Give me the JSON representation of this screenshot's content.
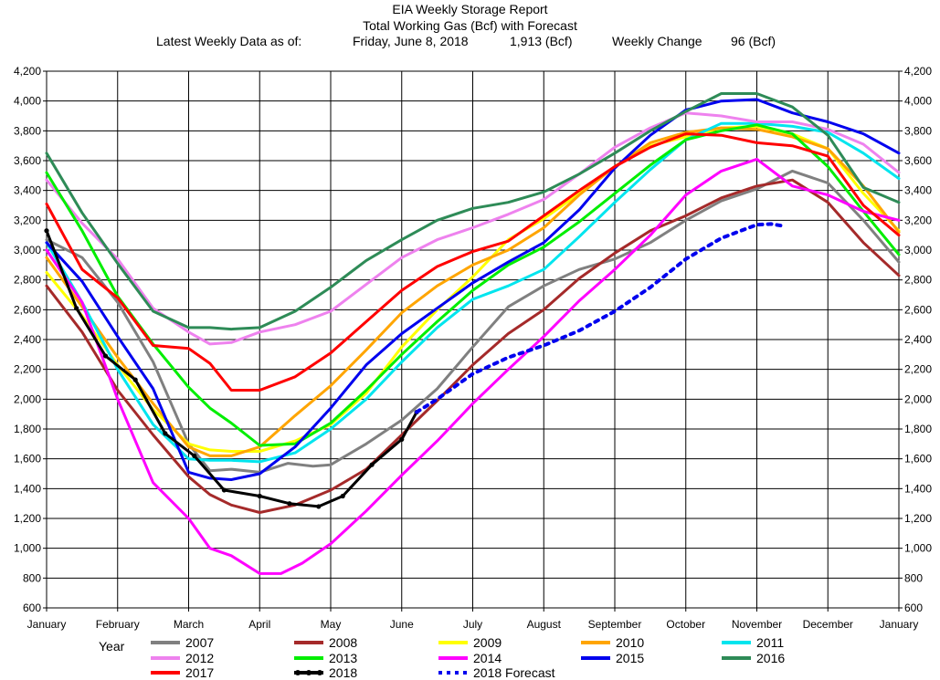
{
  "header": {
    "title": "EIA Weekly Storage Report",
    "subtitle": "Total Working Gas (Bcf) with Forecast",
    "latest_label": "Latest Weekly Data as of:",
    "latest_date": "Friday, June 8, 2018",
    "latest_value": "1,913 (Bcf)",
    "change_label": "Weekly Change",
    "change_value": "96 (Bcf)"
  },
  "legend": {
    "title": "Year"
  },
  "chart_data": {
    "type": "line",
    "title": "Total Working Gas (Bcf) with Forecast",
    "x_tick_labels": [
      "January",
      "February",
      "March",
      "April",
      "May",
      "June",
      "July",
      "August",
      "September",
      "October",
      "November",
      "December",
      "January"
    ],
    "xlim": [
      0,
      12
    ],
    "ylim": [
      600,
      4200
    ],
    "y_ticks": [
      600,
      800,
      1000,
      1200,
      1400,
      1600,
      1800,
      2000,
      2200,
      2400,
      2600,
      2800,
      3000,
      3200,
      3400,
      3600,
      3800,
      4000,
      4200
    ],
    "y_tick_labels": [
      "600",
      "800",
      "1,000",
      "1,200",
      "1,400",
      "1,600",
      "1,800",
      "2,000",
      "2,200",
      "2,400",
      "2,600",
      "2,800",
      "3,000",
      "3,200",
      "3,400",
      "3,600",
      "3,800",
      "4,000",
      "4,200"
    ],
    "grid": true,
    "legend_position": "bottom",
    "series": [
      {
        "name": "2007",
        "color": "#808080",
        "dash": false,
        "markers": false,
        "x": [
          0,
          0.5,
          1,
          1.5,
          2,
          2.3,
          2.6,
          3,
          3.4,
          3.75,
          4,
          4.5,
          5,
          5.5,
          6,
          6.5,
          7,
          7.5,
          8,
          8.5,
          9,
          9.5,
          10,
          10.5,
          11,
          11.5,
          12
        ],
        "y": [
          3070,
          2950,
          2650,
          2250,
          1700,
          1520,
          1530,
          1510,
          1570,
          1550,
          1560,
          1700,
          1860,
          2070,
          2350,
          2620,
          2760,
          2870,
          2940,
          3050,
          3200,
          3330,
          3410,
          3530,
          3450,
          3200,
          2920
        ]
      },
      {
        "name": "2008",
        "color": "#A52A2A",
        "dash": false,
        "markers": false,
        "x": [
          0,
          0.5,
          1,
          1.5,
          2,
          2.3,
          2.6,
          3,
          3.5,
          4,
          4.5,
          5,
          5.5,
          6,
          6.5,
          7,
          7.5,
          8,
          8.5,
          9,
          9.5,
          10,
          10.5,
          11,
          11.5,
          12
        ],
        "y": [
          2760,
          2450,
          2060,
          1760,
          1480,
          1360,
          1290,
          1240,
          1290,
          1390,
          1530,
          1760,
          1990,
          2230,
          2440,
          2600,
          2810,
          2980,
          3130,
          3230,
          3350,
          3430,
          3470,
          3320,
          3050,
          2830
        ]
      },
      {
        "name": "2009",
        "color": "#FFFF00",
        "dash": false,
        "markers": false,
        "x": [
          0,
          0.5,
          1,
          1.5,
          2,
          2.3,
          2.6,
          3,
          3.5,
          4,
          4.5,
          5,
          5.5,
          6,
          6.5,
          7,
          7.5,
          8,
          8.5,
          9,
          9.5,
          10,
          10.5,
          11,
          11.5,
          12
        ],
        "y": [
          2850,
          2560,
          2230,
          1930,
          1700,
          1660,
          1650,
          1650,
          1720,
          1830,
          2040,
          2350,
          2600,
          2820,
          3070,
          3210,
          3380,
          3560,
          3700,
          3760,
          3820,
          3830,
          3780,
          3680,
          3380,
          3130
        ]
      },
      {
        "name": "2010",
        "color": "#FFA500",
        "dash": false,
        "markers": false,
        "x": [
          0,
          0.5,
          1,
          1.5,
          2,
          2.3,
          2.6,
          3,
          3.5,
          4,
          4.5,
          5,
          5.5,
          6,
          6.5,
          7,
          7.5,
          8,
          8.5,
          9,
          9.5,
          10,
          10.5,
          11,
          11.5,
          12
        ],
        "y": [
          2950,
          2620,
          2280,
          1970,
          1680,
          1620,
          1620,
          1680,
          1890,
          2090,
          2330,
          2580,
          2760,
          2900,
          3000,
          3150,
          3370,
          3560,
          3720,
          3790,
          3820,
          3810,
          3760,
          3680,
          3430,
          3120
        ]
      },
      {
        "name": "2011",
        "color": "#00E5EE",
        "dash": false,
        "markers": false,
        "x": [
          0,
          0.5,
          1,
          1.5,
          2,
          2.3,
          2.6,
          3,
          3.5,
          4,
          4.5,
          5,
          5.5,
          6,
          6.5,
          7,
          7.5,
          8,
          8.5,
          9,
          9.5,
          10,
          10.5,
          11,
          11.5,
          12
        ],
        "y": [
          3050,
          2650,
          2200,
          1830,
          1600,
          1590,
          1590,
          1580,
          1640,
          1800,
          2000,
          2250,
          2480,
          2670,
          2760,
          2870,
          3090,
          3320,
          3540,
          3740,
          3850,
          3850,
          3830,
          3790,
          3650,
          3480
        ]
      },
      {
        "name": "2012",
        "color": "#EE82EE",
        "dash": false,
        "markers": false,
        "x": [
          0,
          0.5,
          1,
          1.5,
          2,
          2.3,
          2.6,
          3,
          3.5,
          4,
          4.5,
          5,
          5.5,
          6,
          6.5,
          7,
          7.5,
          8,
          8.5,
          9,
          9.5,
          10,
          10.5,
          11,
          11.5,
          12
        ],
        "y": [
          3470,
          3180,
          2940,
          2610,
          2450,
          2370,
          2380,
          2450,
          2500,
          2590,
          2770,
          2950,
          3070,
          3150,
          3240,
          3340,
          3510,
          3690,
          3820,
          3920,
          3900,
          3860,
          3860,
          3810,
          3710,
          3520
        ]
      },
      {
        "name": "2013",
        "color": "#00EE00",
        "dash": false,
        "markers": false,
        "x": [
          0,
          0.5,
          1,
          1.5,
          2,
          2.3,
          2.6,
          3,
          3.5,
          4,
          4.5,
          5,
          5.5,
          6,
          6.5,
          7,
          7.5,
          8,
          8.5,
          9,
          9.5,
          10,
          10.5,
          11,
          11.5,
          12
        ],
        "y": [
          3520,
          3130,
          2690,
          2370,
          2080,
          1940,
          1840,
          1690,
          1700,
          1840,
          2060,
          2300,
          2520,
          2730,
          2900,
          3020,
          3190,
          3380,
          3570,
          3740,
          3800,
          3840,
          3780,
          3560,
          3260,
          2970
        ]
      },
      {
        "name": "2014",
        "color": "#FF00FF",
        "dash": false,
        "markers": false,
        "x": [
          0,
          0.5,
          1,
          1.5,
          2,
          2.3,
          2.6,
          3,
          3.3,
          3.6,
          4,
          4.5,
          5,
          5.5,
          6,
          6.5,
          7,
          7.5,
          8,
          8.5,
          9,
          9.5,
          10,
          10.5,
          11,
          11.5,
          12
        ],
        "y": [
          3000,
          2650,
          2000,
          1440,
          1200,
          1000,
          950,
          830,
          830,
          900,
          1030,
          1250,
          1490,
          1720,
          1970,
          2200,
          2420,
          2660,
          2870,
          3100,
          3370,
          3530,
          3610,
          3430,
          3370,
          3260,
          3200
        ]
      },
      {
        "name": "2015",
        "color": "#0000EE",
        "dash": false,
        "markers": false,
        "x": [
          0,
          0.5,
          1,
          1.5,
          2,
          2.3,
          2.6,
          3,
          3.5,
          4,
          4.5,
          5,
          5.5,
          6,
          6.5,
          7,
          7.5,
          8,
          8.5,
          9,
          9.5,
          10,
          10.5,
          11,
          11.5,
          12
        ],
        "y": [
          3050,
          2790,
          2420,
          2070,
          1510,
          1470,
          1460,
          1500,
          1680,
          1940,
          2230,
          2440,
          2610,
          2780,
          2920,
          3050,
          3270,
          3550,
          3770,
          3940,
          4000,
          4010,
          3920,
          3860,
          3780,
          3650
        ]
      },
      {
        "name": "2016",
        "color": "#2E8B57",
        "dash": false,
        "markers": false,
        "x": [
          0,
          0.5,
          1,
          1.5,
          2,
          2.3,
          2.6,
          3,
          3.5,
          4,
          4.5,
          5,
          5.5,
          6,
          6.5,
          7,
          7.5,
          8,
          8.5,
          9,
          9.5,
          10,
          10.5,
          11,
          11.5,
          12
        ],
        "y": [
          3650,
          3250,
          2910,
          2590,
          2480,
          2480,
          2470,
          2480,
          2590,
          2750,
          2930,
          3070,
          3200,
          3280,
          3320,
          3390,
          3510,
          3650,
          3800,
          3930,
          4050,
          4050,
          3960,
          3770,
          3420,
          3320
        ]
      },
      {
        "name": "2017",
        "color": "#FF0000",
        "dash": false,
        "markers": false,
        "x": [
          0,
          0.5,
          1,
          1.5,
          2,
          2.3,
          2.6,
          3,
          3.5,
          4,
          4.5,
          5,
          5.5,
          6,
          6.5,
          7,
          7.5,
          8,
          8.5,
          9,
          9.5,
          10,
          10.5,
          11,
          11.5,
          12
        ],
        "y": [
          3310,
          2870,
          2680,
          2360,
          2340,
          2240,
          2060,
          2060,
          2150,
          2310,
          2520,
          2730,
          2890,
          2990,
          3060,
          3230,
          3400,
          3560,
          3690,
          3780,
          3770,
          3720,
          3700,
          3630,
          3300,
          3100
        ]
      },
      {
        "name": "2018",
        "color": "#000000",
        "dash": false,
        "markers": true,
        "x": [
          0,
          0.42,
          0.83,
          1.25,
          1.67,
          2.08,
          2.5,
          3,
          3.42,
          3.83,
          4.17,
          4.58,
          5,
          5.21
        ],
        "y": [
          3130,
          2610,
          2290,
          2130,
          1770,
          1620,
          1390,
          1350,
          1300,
          1280,
          1350,
          1560,
          1730,
          1913
        ]
      },
      {
        "name": "2018 Forecast",
        "color": "#0000EE",
        "dash": true,
        "markers": false,
        "x": [
          5.21,
          5.5,
          6,
          6.5,
          7,
          7.5,
          8,
          8.5,
          9,
          9.5,
          10,
          10.2,
          10.4
        ],
        "y": [
          1913,
          2000,
          2170,
          2280,
          2360,
          2460,
          2590,
          2750,
          2940,
          3080,
          3170,
          3175,
          3160
        ]
      }
    ]
  }
}
